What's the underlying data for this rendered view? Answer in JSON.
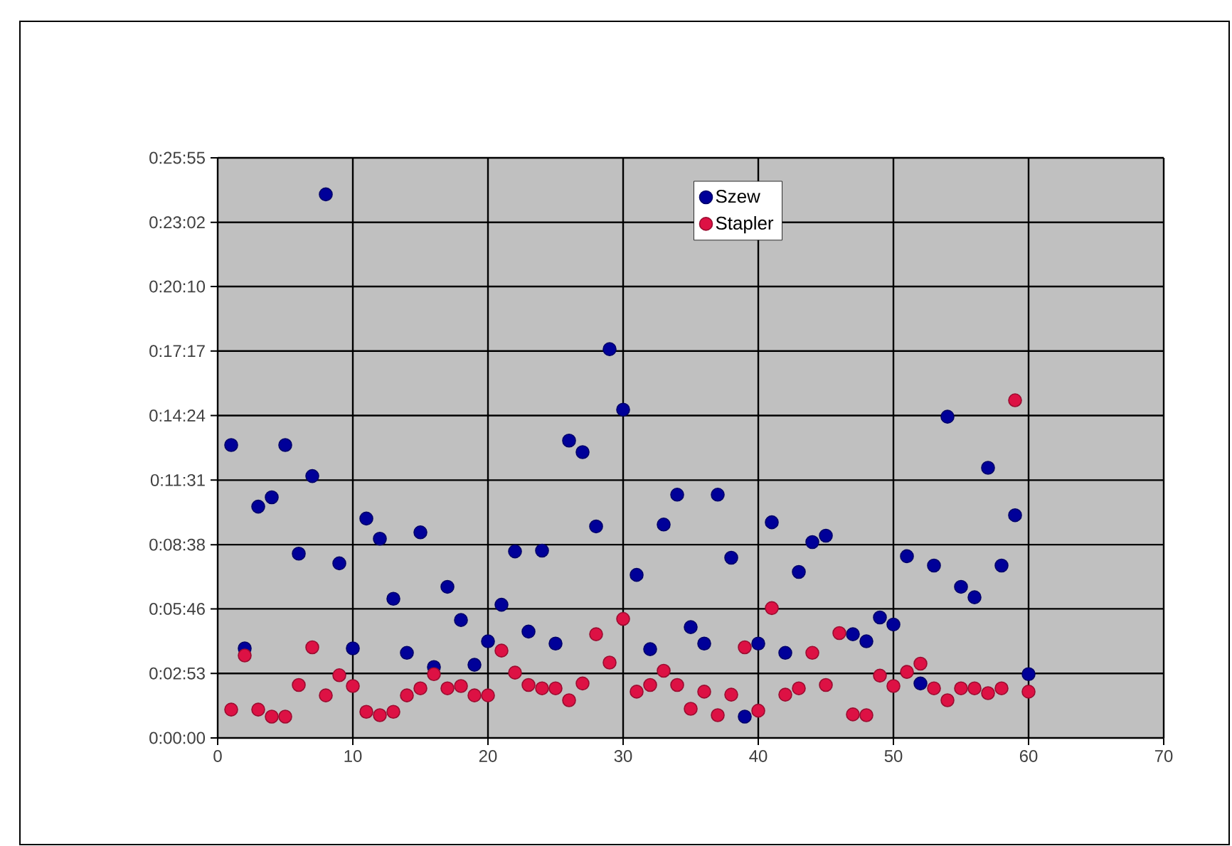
{
  "chart_data": {
    "type": "scatter",
    "x": [
      1,
      2,
      3,
      4,
      5,
      6,
      7,
      8,
      9,
      10,
      11,
      12,
      13,
      14,
      15,
      16,
      17,
      18,
      19,
      20,
      21,
      22,
      23,
      24,
      25,
      26,
      27,
      28,
      29,
      30,
      31,
      32,
      33,
      34,
      35,
      36,
      37,
      38,
      39,
      40,
      41,
      42,
      43,
      44,
      45,
      46,
      47,
      48,
      49,
      50,
      51,
      52,
      53,
      54,
      55,
      56,
      57,
      58,
      59,
      60
    ],
    "series": [
      {
        "name": "Szew",
        "color": "#000099",
        "values": [
          785,
          240,
          620,
          645,
          785,
          494,
          702,
          1457,
          468,
          240,
          588,
          534,
          373,
          228,
          551,
          190,
          405,
          316,
          196,
          259,
          357,
          500,
          285,
          502,
          253,
          797,
          766,
          567,
          1042,
          880,
          437,
          238,
          572,
          652,
          297,
          253,
          652,
          483,
          57,
          253,
          578,
          228,
          445,
          525,
          542,
          null,
          278,
          259,
          323,
          304,
          487,
          146,
          462,
          861,
          405,
          377,
          724,
          462,
          597,
          171
        ]
      },
      {
        "name": "Stapler",
        "color": "#dd1144",
        "values": [
          76,
          221,
          76,
          57,
          57,
          142,
          243,
          114,
          168,
          139,
          70,
          61,
          70,
          114,
          133,
          171,
          133,
          139,
          114,
          114,
          234,
          175,
          142,
          133,
          133,
          101,
          146,
          278,
          202,
          319,
          124,
          142,
          180,
          142,
          78,
          124,
          61,
          116,
          243,
          73,
          348,
          116,
          133,
          228,
          142,
          281,
          63,
          61,
          167,
          139,
          177,
          199,
          133,
          101,
          133,
          133,
          120,
          133,
          905,
          124
        ]
      }
    ],
    "xlim": [
      0,
      70
    ],
    "xticks": [
      0,
      10,
      20,
      30,
      40,
      50,
      60,
      70
    ],
    "ylim": [
      0,
      1555
    ],
    "yticks": [
      {
        "value": 0,
        "label": "0:00:00"
      },
      {
        "value": 173,
        "label": "0:02:53"
      },
      {
        "value": 346,
        "label": "0:05:46"
      },
      {
        "value": 518,
        "label": "0:08:38"
      },
      {
        "value": 691,
        "label": "0:11:31"
      },
      {
        "value": 864,
        "label": "0:14:24"
      },
      {
        "value": 1037,
        "label": "0:17:17"
      },
      {
        "value": 1210,
        "label": "0:20:10"
      },
      {
        "value": 1382,
        "label": "0:23:02"
      },
      {
        "value": 1555,
        "label": "0:25:55"
      }
    ],
    "grid": true,
    "legend": "top",
    "marker": "circle"
  }
}
